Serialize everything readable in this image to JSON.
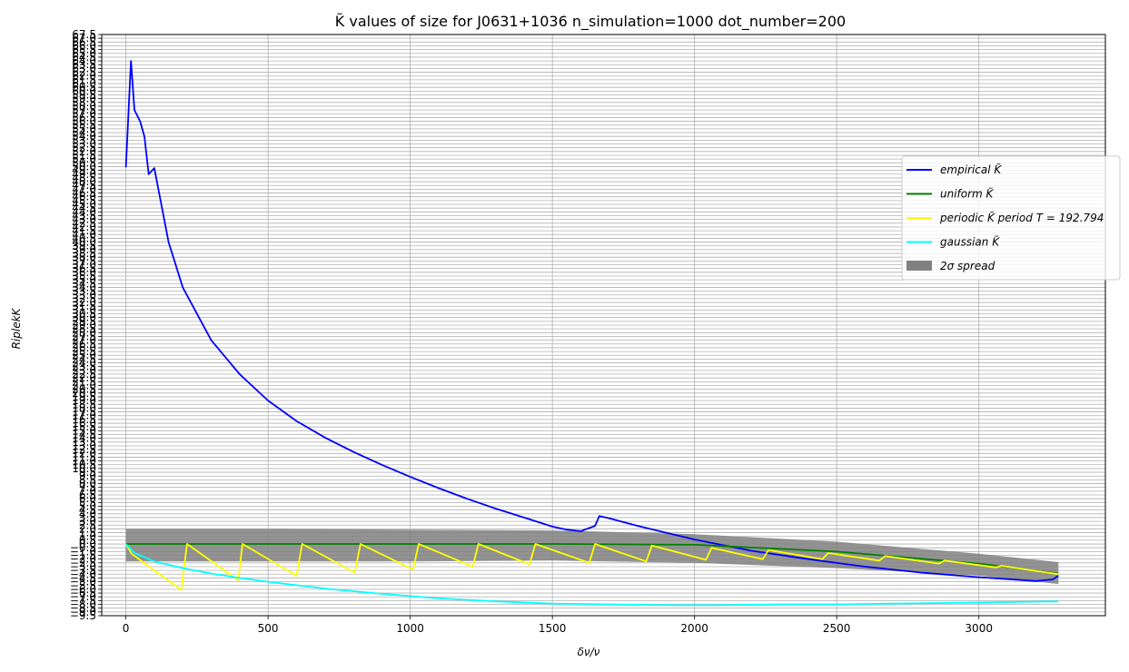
{
  "chart_data": {
    "type": "line",
    "title": "K̃ values of size for J0631+1036 n_simulation=1000 dot_number=200",
    "xlabel": "δν/ν",
    "ylabel": "RiplekK",
    "xlim": [
      -85,
      3445
    ],
    "ylim": [
      -9.5,
      67.5
    ],
    "x_ticks": [
      0,
      500,
      1000,
      1500,
      2000,
      2500,
      3000
    ],
    "y_tick_start": -9.5,
    "y_tick_end": 67.5,
    "y_tick_step": 0.5,
    "grid": true,
    "legend_position": "right",
    "colors": {
      "empirical": "#0000ff",
      "uniform": "#008000",
      "periodic": "#ffff00",
      "gaussian": "#00ffff",
      "spread": "#808080"
    },
    "legend": [
      {
        "key": "empirical",
        "label": "empirical K̃"
      },
      {
        "key": "uniform",
        "label": "uniform K̃"
      },
      {
        "key": "periodic",
        "label": "periodic K̃ period T = 192.794"
      },
      {
        "key": "gaussian",
        "label": "gaussian K̃"
      },
      {
        "key": "spread",
        "label": "2σ spread"
      }
    ],
    "series": [
      {
        "key": "empirical",
        "x": [
          0,
          18,
          30,
          50,
          65,
          80,
          100,
          150,
          200,
          300,
          400,
          500,
          600,
          700,
          800,
          900,
          1000,
          1100,
          1200,
          1300,
          1400,
          1500,
          1550,
          1600,
          1650,
          1665,
          1700,
          1800,
          1900,
          2000,
          2200,
          2400,
          2600,
          2800,
          3000,
          3200,
          3260,
          3280
        ],
        "y": [
          49.9,
          64.0,
          57.5,
          56.0,
          54.0,
          49.0,
          49.8,
          40.0,
          34.0,
          27.0,
          22.5,
          19.0,
          16.3,
          14.1,
          12.2,
          10.5,
          8.9,
          7.4,
          6.0,
          4.7,
          3.5,
          2.3,
          1.9,
          1.7,
          2.4,
          3.7,
          3.4,
          2.4,
          1.5,
          0.6,
          -0.9,
          -2.0,
          -3.0,
          -3.8,
          -4.4,
          -4.9,
          -4.7,
          -4.2
        ]
      },
      {
        "key": "uniform",
        "x": [
          0,
          500,
          1000,
          1500,
          2000,
          2500,
          3000,
          3280
        ],
        "y": [
          0.0,
          0.0,
          0.0,
          0.0,
          -0.1,
          -1.0,
          -2.6,
          -3.9
        ]
      },
      {
        "key": "periodic",
        "x": [
          0,
          20,
          100,
          195,
          215,
          395,
          410,
          600,
          620,
          805,
          825,
          1010,
          1030,
          1220,
          1240,
          1420,
          1440,
          1630,
          1650,
          1830,
          1850,
          2040,
          2060,
          2240,
          2260,
          2450,
          2470,
          2650,
          2670,
          2860,
          2880,
          3060,
          3080,
          3280
        ],
        "y": [
          0.0,
          -1.3,
          -3.5,
          -6.1,
          0.0,
          -4.8,
          0.0,
          -4.2,
          0.0,
          -3.8,
          0.0,
          -3.4,
          0.0,
          -3.0,
          0.0,
          -2.7,
          0.0,
          -2.5,
          0.0,
          -2.3,
          -0.2,
          -2.1,
          -0.5,
          -2.0,
          -0.8,
          -2.0,
          -1.2,
          -2.2,
          -1.6,
          -2.6,
          -2.2,
          -3.1,
          -2.9,
          -4.0
        ]
      },
      {
        "key": "gaussian",
        "x": [
          0,
          30,
          100,
          200,
          300,
          400,
          500,
          700,
          900,
          1100,
          1300,
          1500,
          1700,
          1900,
          2100,
          2300,
          2500,
          2700,
          2900,
          3100,
          3280
        ],
        "y": [
          0.0,
          -1.2,
          -2.3,
          -3.2,
          -3.9,
          -4.5,
          -5.0,
          -5.9,
          -6.6,
          -7.2,
          -7.6,
          -7.9,
          -8.0,
          -8.1,
          -8.1,
          -8.0,
          -8.0,
          -7.9,
          -7.8,
          -7.7,
          -7.6
        ]
      }
    ],
    "spread_band": {
      "key": "spread",
      "x": [
        0,
        500,
        1000,
        1500,
        2000,
        2500,
        3000,
        3280
      ],
      "upper": [
        2.0,
        2.0,
        1.9,
        1.8,
        1.3,
        0.3,
        -1.3,
        -2.4
      ],
      "lower": [
        -2.3,
        -2.3,
        -2.3,
        -2.2,
        -2.5,
        -3.2,
        -4.2,
        -5.3
      ]
    }
  }
}
